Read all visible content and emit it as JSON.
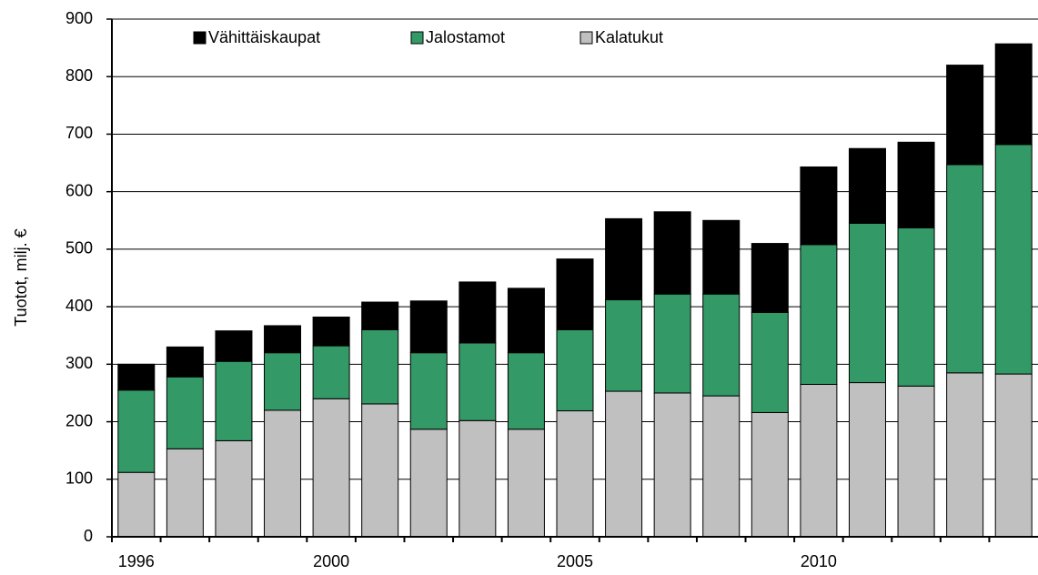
{
  "chart_data": {
    "type": "stacked_bar",
    "y_label": "Tuotot, milj. €",
    "categories": [
      "1996",
      null,
      null,
      null,
      "2000",
      null,
      null,
      null,
      null,
      "2005",
      null,
      null,
      null,
      null,
      "2010",
      null,
      null,
      null,
      null
    ],
    "series": [
      {
        "name": "Vähittäiskaupat",
        "color": "#000000",
        "values": [
          45,
          52,
          53,
          47,
          50,
          48,
          90,
          106,
          112,
          123,
          141,
          143,
          128,
          120,
          135,
          130,
          149,
          173,
          175
        ]
      },
      {
        "name": "Jalostamot",
        "color": "#339966",
        "values": [
          143,
          125,
          138,
          100,
          92,
          129,
          133,
          135,
          133,
          141,
          159,
          172,
          177,
          174,
          243,
          277,
          275,
          362,
          399
        ]
      },
      {
        "name": "Kalatukut",
        "color": "#c0c0c0",
        "values": [
          112,
          153,
          167,
          220,
          240,
          231,
          187,
          202,
          187,
          219,
          253,
          250,
          245,
          216,
          265,
          268,
          262,
          285,
          283
        ]
      }
    ],
    "ylim": [
      0,
      900
    ],
    "yticks": [
      0,
      100,
      200,
      300,
      400,
      500,
      600,
      700,
      800,
      900
    ],
    "grid": true,
    "legend": "top"
  }
}
